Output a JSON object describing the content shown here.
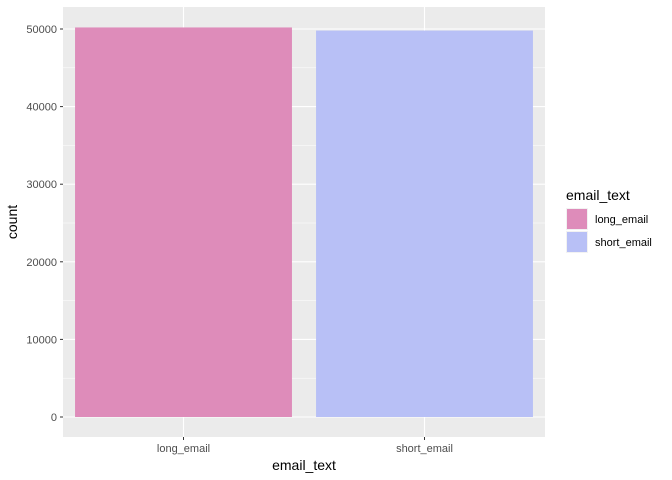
{
  "chart_data": {
    "type": "bar",
    "categories": [
      "long_email",
      "short_email"
    ],
    "values": [
      50200,
      49800
    ],
    "colors": [
      "#DE8CBA",
      "#B8C0F6"
    ],
    "xlabel": "email_text",
    "ylabel": "count",
    "ylim": [
      0,
      52500
    ],
    "yticks": [
      0,
      10000,
      20000,
      30000,
      40000,
      50000
    ],
    "grid": true,
    "panel_background": "#EBEBEB",
    "legend": {
      "title": "email_text",
      "position": "right",
      "entries": [
        "long_email",
        "short_email"
      ]
    }
  }
}
